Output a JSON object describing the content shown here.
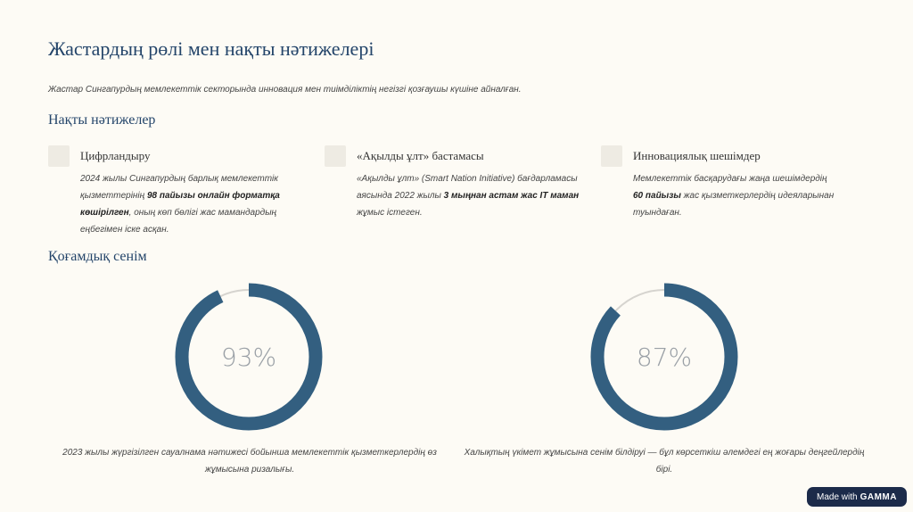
{
  "header": {
    "title": "Жастардың рөлі мен нақты нәтижелері",
    "subtitle": "Жастар Сингапурдың мемлекеттік секторында инновация мен тиімділіктің негізгі қозғаушы күшіне айналған."
  },
  "results": {
    "heading": "Нақты нәтижелер",
    "items": [
      {
        "title": "Цифрландыру",
        "parts": [
          {
            "text": "2024 жылы Сингапурдың барлық мемлекеттік қызметтерінің ",
            "bold": false
          },
          {
            "text": "98 пайызы онлайн форматқа көшірілген",
            "bold": true
          },
          {
            "text": ", оның көп бөлігі жас мамандардың еңбегімен іске асқан.",
            "bold": false
          }
        ]
      },
      {
        "title": "«Ақылды ұлт» бастамасы",
        "parts": [
          {
            "text": "«Ақылды ұлт» (Smart Nation Initiative) бағдарламасы аясында 2022 жылы ",
            "bold": false
          },
          {
            "text": "3 мыңнан астам жас IT маман",
            "bold": true
          },
          {
            "text": " жұмыс істеген.",
            "bold": false
          }
        ]
      },
      {
        "title": "Инновациялық шешімдер",
        "parts": [
          {
            "text": "Мемлекеттік басқарудағы жаңа шешімдердің ",
            "bold": false
          },
          {
            "text": "60 пайызы",
            "bold": true
          },
          {
            "text": " жас қызметкерлердің идеяларынан туындаған.",
            "bold": false
          }
        ]
      }
    ]
  },
  "trust": {
    "heading": "Қоғамдық сенім",
    "stats": [
      {
        "value": 93,
        "label": "93%",
        "caption": "2023 жылы жүргізілген сауалнама нәтижесі бойынша мемлекеттік қызметкерлердің өз жұмысына ризалығы."
      },
      {
        "value": 87,
        "label": "87%",
        "caption": "Халықтың үкімет жұмысына сенім білдіруі — бұл көрсеткіш әлемдегі ең жоғары деңгейлердің бірі."
      }
    ],
    "color": "#335f80"
  },
  "badge": {
    "prefix": "Made with",
    "brand": "GAMMA"
  }
}
